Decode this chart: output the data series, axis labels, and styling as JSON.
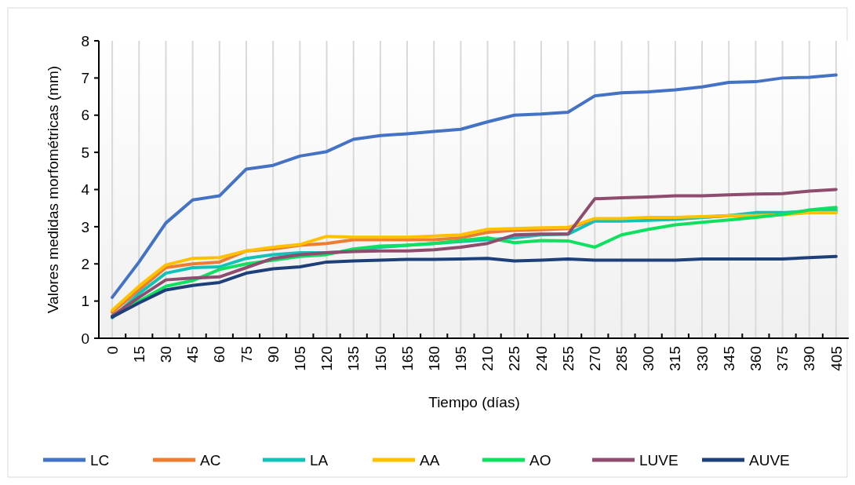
{
  "chart_data": {
    "type": "line",
    "xlabel": "Tiempo (días)",
    "ylabel": "Valores medidas morfométricas (mm)",
    "categories": [
      "0",
      "15",
      "30",
      "45",
      "60",
      "75",
      "90",
      "105",
      "120",
      "135",
      "150",
      "165",
      "180",
      "195",
      "210",
      "225",
      "240",
      "255",
      "270",
      "285",
      "300",
      "315",
      "330",
      "345",
      "360",
      "375",
      "390",
      "405"
    ],
    "ylim": [
      0,
      8
    ],
    "yticks": [
      0,
      1,
      2,
      3,
      4,
      5,
      6,
      7,
      8
    ],
    "grid": "x",
    "legend": "bottom",
    "marker": "none",
    "line_style": "solid",
    "series": [
      {
        "name": "LC",
        "color": "#4472c4",
        "values": [
          1.1,
          2.05,
          3.1,
          3.72,
          3.83,
          4.55,
          4.65,
          4.9,
          5.02,
          5.35,
          5.45,
          5.5,
          5.56,
          5.62,
          5.82,
          6.0,
          6.03,
          6.08,
          6.52,
          6.6,
          6.63,
          6.68,
          6.76,
          6.88,
          6.9,
          7.0,
          7.02,
          7.08
        ]
      },
      {
        "name": "AC",
        "color": "#ed7d31",
        "values": [
          0.7,
          1.3,
          1.9,
          2.0,
          2.05,
          2.35,
          2.4,
          2.5,
          2.55,
          2.65,
          2.65,
          2.65,
          2.65,
          2.7,
          2.85,
          2.9,
          2.92,
          2.95,
          3.2,
          3.2,
          3.22,
          3.22,
          3.25,
          3.3,
          3.3,
          3.35,
          3.38,
          3.38
        ]
      },
      {
        "name": "LA",
        "color": "#13c2b6",
        "values": [
          0.55,
          1.2,
          1.75,
          1.9,
          1.92,
          2.15,
          2.25,
          2.3,
          2.3,
          2.35,
          2.45,
          2.5,
          2.55,
          2.6,
          2.65,
          2.7,
          2.78,
          2.8,
          3.15,
          3.15,
          3.17,
          3.2,
          3.25,
          3.3,
          3.38,
          3.38,
          3.42,
          3.45
        ]
      },
      {
        "name": "AA",
        "color": "#ffc000",
        "values": [
          0.75,
          1.4,
          1.97,
          2.15,
          2.17,
          2.35,
          2.45,
          2.52,
          2.74,
          2.72,
          2.72,
          2.72,
          2.75,
          2.78,
          2.93,
          2.95,
          2.97,
          2.98,
          3.22,
          3.22,
          3.25,
          3.25,
          3.27,
          3.3,
          3.3,
          3.32,
          3.38,
          3.38
        ]
      },
      {
        "name": "AO",
        "color": "#10e060",
        "values": [
          0.6,
          1.0,
          1.4,
          1.55,
          1.85,
          2.0,
          2.1,
          2.2,
          2.25,
          2.4,
          2.48,
          2.5,
          2.55,
          2.63,
          2.7,
          2.57,
          2.63,
          2.62,
          2.45,
          2.78,
          2.93,
          3.05,
          3.12,
          3.18,
          3.25,
          3.33,
          3.45,
          3.52
        ]
      },
      {
        "name": "LUVE",
        "color": "#8e4c6e",
        "values": [
          0.6,
          1.1,
          1.57,
          1.62,
          1.65,
          1.9,
          2.15,
          2.25,
          2.3,
          2.33,
          2.35,
          2.35,
          2.38,
          2.45,
          2.55,
          2.78,
          2.8,
          2.8,
          3.75,
          3.78,
          3.8,
          3.83,
          3.83,
          3.86,
          3.88,
          3.89,
          3.96,
          4.0
        ]
      },
      {
        "name": "AUVE",
        "color": "#1f3f78",
        "values": [
          0.57,
          0.95,
          1.3,
          1.42,
          1.5,
          1.75,
          1.87,
          1.92,
          2.05,
          2.08,
          2.1,
          2.12,
          2.12,
          2.13,
          2.15,
          2.08,
          2.1,
          2.13,
          2.1,
          2.1,
          2.1,
          2.1,
          2.13,
          2.13,
          2.13,
          2.13,
          2.17,
          2.2
        ]
      }
    ]
  }
}
